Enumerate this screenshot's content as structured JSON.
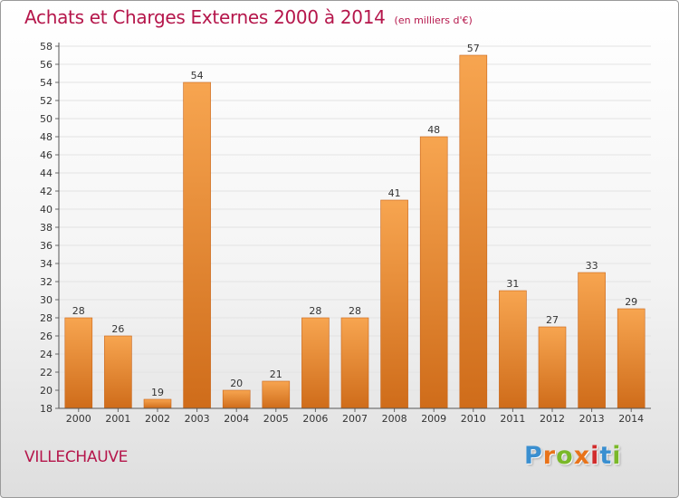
{
  "title": "Achats et Charges Externes 2000 à 2014",
  "unit_note": "(en milliers d'€)",
  "commune": "VILLECHAUVE",
  "logo": {
    "letters": [
      "P",
      "r",
      "o",
      "x",
      "i",
      "t",
      "i"
    ],
    "colors": [
      "#3a8fd0",
      "#e8731a",
      "#7ab829",
      "#e8731a",
      "#d12c2c",
      "#3a8fd0",
      "#7ab829"
    ]
  },
  "colors": {
    "bar": "#f0953c",
    "bar_dark": "#cf6c1a",
    "title": "#b5164b",
    "grid": "#e3e3e3"
  },
  "chart_data": {
    "type": "bar",
    "title": "Achats et Charges Externes 2000 à 2014",
    "xlabel": "",
    "ylabel": "",
    "categories": [
      "2000",
      "2001",
      "2002",
      "2003",
      "2004",
      "2005",
      "2006",
      "2007",
      "2008",
      "2009",
      "2010",
      "2011",
      "2012",
      "2013",
      "2014"
    ],
    "values": [
      28,
      26,
      19,
      54,
      20,
      21,
      28,
      28,
      41,
      48,
      57,
      31,
      27,
      33,
      29
    ],
    "ylim": [
      18,
      58
    ],
    "yticks": [
      18,
      20,
      22,
      24,
      26,
      28,
      30,
      32,
      34,
      36,
      38,
      40,
      42,
      44,
      46,
      48,
      50,
      52,
      54,
      56,
      58
    ],
    "grid": true,
    "legend": "none"
  }
}
